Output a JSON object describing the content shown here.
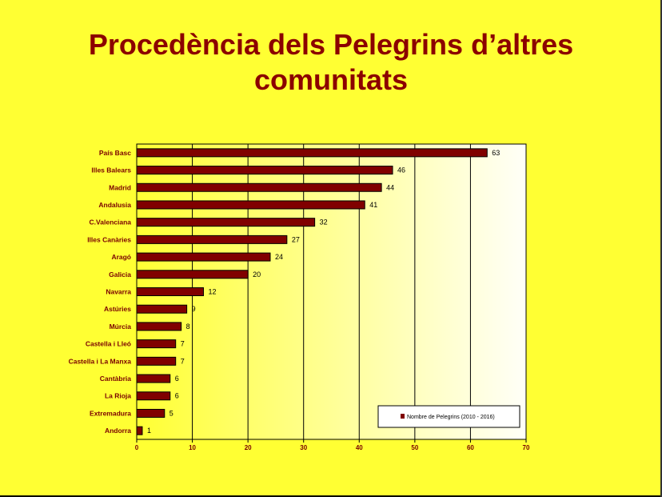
{
  "title": {
    "line1": "Procedència dels Pelegrins d’altres",
    "line2": "comunitats"
  },
  "colors": {
    "background": "#FFFF33",
    "title": "#8B0000",
    "bar": "#800000",
    "label": "#7A0000"
  },
  "chart_data": {
    "type": "bar",
    "orientation": "horizontal",
    "categories": [
      "País Basc",
      "Illes Balears",
      "Madrid",
      "Andalusia",
      "C.Valenciana",
      "Illes Canàries",
      "Aragó",
      "Galicia",
      "Navarra",
      "Astúries",
      "Múrcia",
      "Castella i Lleó",
      "Castella i La Manxa",
      "Cantàbria",
      "La Rioja",
      "Extremadura",
      "Andorra"
    ],
    "series": [
      {
        "name": "Nombre de Pelegrins (2010 - 2016)",
        "values": [
          63,
          46,
          44,
          41,
          32,
          27,
          24,
          20,
          12,
          9,
          8,
          7,
          7,
          6,
          6,
          5,
          1
        ]
      }
    ],
    "xlim": [
      0,
      70
    ],
    "xticks": [
      0,
      10,
      20,
      30,
      40,
      50,
      60,
      70
    ],
    "grid": true,
    "legend": "bottom-right",
    "data_labels": true
  }
}
